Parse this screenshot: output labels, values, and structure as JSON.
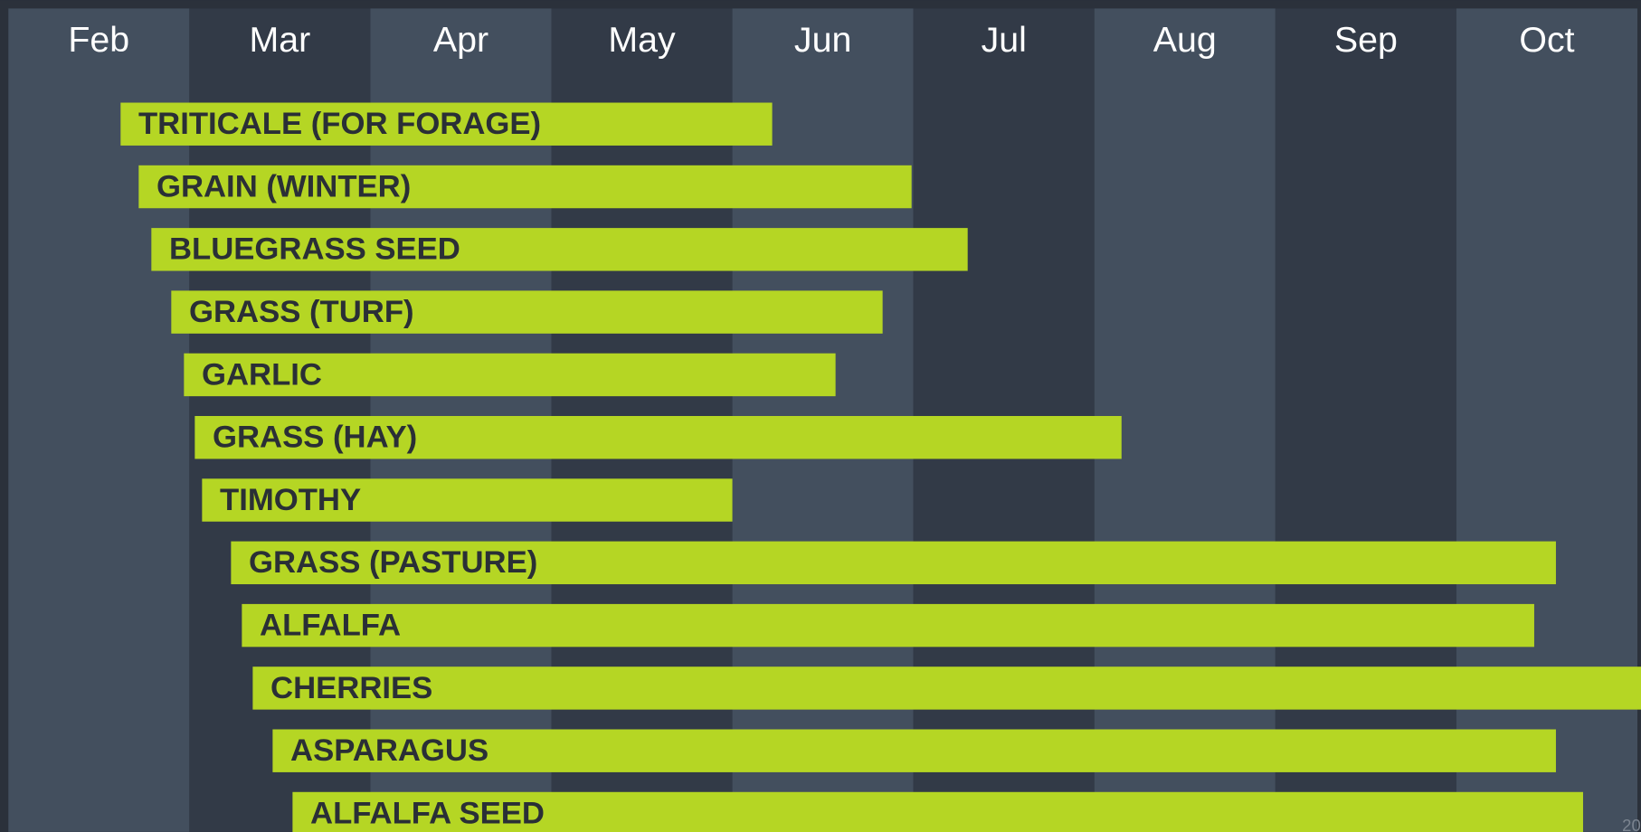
{
  "chart_data": {
    "type": "gantt",
    "xlim": [
      2,
      11.02
    ],
    "xticks": [
      {
        "value": 2,
        "label": "Feb"
      },
      {
        "value": 3,
        "label": "Mar"
      },
      {
        "value": 4,
        "label": "Apr"
      },
      {
        "value": 5,
        "label": "May"
      },
      {
        "value": 6,
        "label": "Jun"
      },
      {
        "value": 7,
        "label": "Jul"
      },
      {
        "value": 8,
        "label": "Aug"
      },
      {
        "value": 9,
        "label": "Sep"
      },
      {
        "value": 10,
        "label": "Oct"
      }
    ],
    "color": "#b5d624",
    "tasks": [
      {
        "name": "TRITICALE (FOR FORAGE)",
        "start": 2.62,
        "end": 6.22
      },
      {
        "name": "GRAIN (WINTER)",
        "start": 2.72,
        "end": 6.99
      },
      {
        "name": "BLUEGRASS SEED",
        "start": 2.79,
        "end": 7.3
      },
      {
        "name": "GRASS (TURF)",
        "start": 2.9,
        "end": 6.83
      },
      {
        "name": "GARLIC",
        "start": 2.97,
        "end": 6.57
      },
      {
        "name": "GRASS (HAY)",
        "start": 3.03,
        "end": 8.15
      },
      {
        "name": "TIMOTHY",
        "start": 3.07,
        "end": 6.0
      },
      {
        "name": "GRASS (PASTURE)",
        "start": 3.23,
        "end": 10.55
      },
      {
        "name": "ALFALFA",
        "start": 3.29,
        "end": 10.43
      },
      {
        "name": "CHERRIES",
        "start": 3.35,
        "end": 11.1
      },
      {
        "name": "ASPARAGUS",
        "start": 3.46,
        "end": 10.55
      },
      {
        "name": "ALFALFA SEED",
        "start": 3.57,
        "end": 10.7
      }
    ],
    "page_number": "20"
  }
}
